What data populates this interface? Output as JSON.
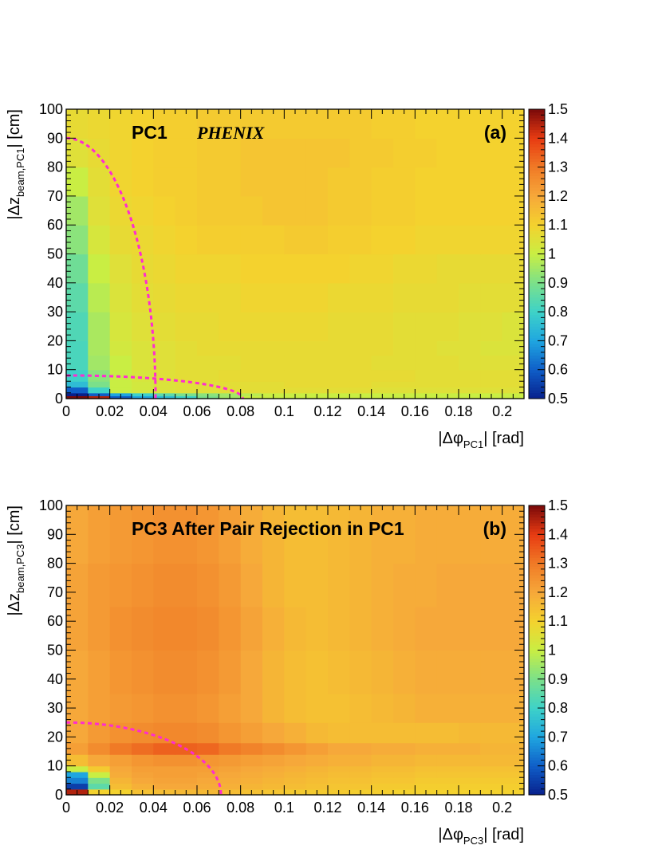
{
  "colors": {
    "palette": [
      "#08208c",
      "#0f5ec8",
      "#1fa6e0",
      "#3ed2c8",
      "#7be08a",
      "#c9ee43",
      "#f4d22e",
      "#f6a83a",
      "#f07a26",
      "#e83b12",
      "#7a0a0a"
    ],
    "contour": "#ff2bd0"
  },
  "chart_data": [
    {
      "type": "heatmap",
      "panel": "a",
      "label": "(a)",
      "title": "PC1",
      "subtitle": "PHENIX",
      "xlabel": {
        "prefix": "|Δφ",
        "sub": "PC1",
        "suffix": "| [rad]"
      },
      "ylabel": {
        "prefix": "|Δz",
        "sub": "beam,PC1",
        "suffix": "| [cm]"
      },
      "xlim": [
        0,
        0.21
      ],
      "ylim": [
        0,
        100
      ],
      "zlim": [
        0.5,
        1.5
      ],
      "x_ticks": [
        "0",
        "0.02",
        "0.04",
        "0.06",
        "0.08",
        "0.1",
        "0.12",
        "0.14",
        "0.16",
        "0.18",
        "0.2"
      ],
      "x_tick_values": [
        0,
        0.02,
        0.04,
        0.06,
        0.08,
        0.1,
        0.12,
        0.14,
        0.16,
        0.18,
        0.2
      ],
      "y_ticks": [
        "0",
        "10",
        "20",
        "30",
        "40",
        "50",
        "60",
        "70",
        "80",
        "90",
        "100"
      ],
      "y_tick_values": [
        0,
        10,
        20,
        30,
        40,
        50,
        60,
        70,
        80,
        90,
        100
      ],
      "z_ticks": [
        "0.5",
        "0.6",
        "0.7",
        "0.8",
        "0.9",
        "1",
        "1.1",
        "1.2",
        "1.3",
        "1.4",
        "1.5"
      ],
      "z_tick_values": [
        0.5,
        0.6,
        0.7,
        0.8,
        0.9,
        1.0,
        1.1,
        1.2,
        1.3,
        1.4,
        1.5
      ],
      "x_bins": [
        0,
        0.01,
        0.02,
        0.03,
        0.04,
        0.05,
        0.06,
        0.07,
        0.08,
        0.09,
        0.1,
        0.11,
        0.12,
        0.13,
        0.14,
        0.15,
        0.16,
        0.17,
        0.18,
        0.19,
        0.2,
        0.21
      ],
      "y_bins": [
        0,
        1,
        2,
        4,
        6,
        10,
        15,
        20,
        30,
        40,
        50,
        60,
        70,
        80,
        90,
        100
      ],
      "z": [
        [
          1.5,
          1.45,
          0.6,
          0.7,
          0.75,
          0.8,
          0.9,
          0.95,
          1.0,
          1.0,
          1.0,
          1.0,
          1.0,
          1.0,
          1.0,
          1.0,
          1.0,
          1.0,
          1.0,
          1.0,
          1.0
        ],
        [
          0.5,
          0.6,
          0.7,
          0.8,
          0.85,
          0.9,
          0.92,
          0.95,
          0.98,
          1.0,
          1.0,
          1.0,
          1.0,
          1.0,
          1.0,
          1.0,
          1.0,
          1.0,
          1.0,
          1.0,
          1.0
        ],
        [
          0.6,
          0.8,
          1.0,
          1.02,
          1.04,
          1.05,
          1.05,
          1.06,
          1.06,
          1.06,
          1.06,
          1.06,
          1.06,
          1.06,
          1.05,
          1.05,
          1.05,
          1.05,
          1.05,
          1.05,
          1.05
        ],
        [
          0.75,
          0.9,
          1.0,
          1.02,
          1.04,
          1.05,
          1.05,
          1.06,
          1.06,
          1.06,
          1.07,
          1.07,
          1.07,
          1.07,
          1.06,
          1.06,
          1.06,
          1.06,
          1.06,
          1.06,
          1.06
        ],
        [
          0.8,
          0.92,
          1.0,
          1.03,
          1.05,
          1.06,
          1.06,
          1.07,
          1.07,
          1.07,
          1.07,
          1.07,
          1.07,
          1.07,
          1.07,
          1.07,
          1.06,
          1.06,
          1.06,
          1.06,
          1.06
        ],
        [
          0.82,
          0.95,
          1.0,
          1.04,
          1.05,
          1.06,
          1.06,
          1.06,
          1.07,
          1.07,
          1.07,
          1.07,
          1.07,
          1.07,
          1.06,
          1.06,
          1.06,
          1.06,
          1.05,
          1.05,
          1.05
        ],
        [
          0.82,
          0.96,
          1.02,
          1.04,
          1.05,
          1.06,
          1.07,
          1.07,
          1.07,
          1.07,
          1.07,
          1.07,
          1.07,
          1.07,
          1.07,
          1.06,
          1.06,
          1.05,
          1.05,
          1.04,
          1.04
        ],
        [
          0.83,
          0.96,
          1.03,
          1.05,
          1.06,
          1.07,
          1.07,
          1.08,
          1.08,
          1.08,
          1.08,
          1.08,
          1.07,
          1.07,
          1.07,
          1.06,
          1.06,
          1.06,
          1.05,
          1.05,
          1.04
        ],
        [
          0.85,
          0.98,
          1.04,
          1.06,
          1.07,
          1.08,
          1.08,
          1.08,
          1.09,
          1.09,
          1.09,
          1.09,
          1.08,
          1.08,
          1.08,
          1.07,
          1.07,
          1.07,
          1.06,
          1.06,
          1.06
        ],
        [
          0.88,
          1.0,
          1.05,
          1.07,
          1.08,
          1.09,
          1.09,
          1.09,
          1.1,
          1.1,
          1.1,
          1.1,
          1.1,
          1.09,
          1.09,
          1.08,
          1.08,
          1.07,
          1.07,
          1.07,
          1.07
        ],
        [
          0.92,
          1.03,
          1.07,
          1.08,
          1.09,
          1.1,
          1.11,
          1.11,
          1.11,
          1.11,
          1.12,
          1.12,
          1.11,
          1.11,
          1.1,
          1.1,
          1.09,
          1.09,
          1.09,
          1.09,
          1.09
        ],
        [
          0.95,
          1.05,
          1.08,
          1.09,
          1.1,
          1.11,
          1.12,
          1.12,
          1.12,
          1.13,
          1.13,
          1.13,
          1.12,
          1.12,
          1.11,
          1.11,
          1.1,
          1.1,
          1.1,
          1.1,
          1.1
        ],
        [
          1.0,
          1.06,
          1.09,
          1.1,
          1.11,
          1.11,
          1.12,
          1.12,
          1.13,
          1.13,
          1.13,
          1.13,
          1.12,
          1.12,
          1.11,
          1.11,
          1.1,
          1.1,
          1.1,
          1.1,
          1.1
        ],
        [
          1.05,
          1.07,
          1.09,
          1.1,
          1.11,
          1.11,
          1.12,
          1.12,
          1.13,
          1.13,
          1.13,
          1.13,
          1.13,
          1.12,
          1.12,
          1.11,
          1.11,
          1.1,
          1.1,
          1.1,
          1.1
        ],
        [
          1.07,
          1.08,
          1.09,
          1.1,
          1.11,
          1.11,
          1.12,
          1.12,
          1.12,
          1.12,
          1.12,
          1.12,
          1.12,
          1.12,
          1.11,
          1.11,
          1.1,
          1.1,
          1.1,
          1.1,
          1.1
        ]
      ],
      "cut_contours": [
        {
          "rx": 0.041,
          "ry": 90
        },
        {
          "rx": 0.081,
          "ry": 8
        }
      ]
    },
    {
      "type": "heatmap",
      "panel": "b",
      "label": "(b)",
      "title": "PC3 After Pair Rejection in PC1",
      "subtitle": "",
      "xlabel": {
        "prefix": "|Δφ",
        "sub": "PC3",
        "suffix": "| [rad]"
      },
      "ylabel": {
        "prefix": "|Δz",
        "sub": "beam,PC3",
        "suffix": "| [cm]"
      },
      "xlim": [
        0,
        0.21
      ],
      "ylim": [
        0,
        100
      ],
      "zlim": [
        0.5,
        1.5
      ],
      "x_ticks": [
        "0",
        "0.02",
        "0.04",
        "0.06",
        "0.08",
        "0.1",
        "0.12",
        "0.14",
        "0.16",
        "0.18",
        "0.2"
      ],
      "x_tick_values": [
        0,
        0.02,
        0.04,
        0.06,
        0.08,
        0.1,
        0.12,
        0.14,
        0.16,
        0.18,
        0.2
      ],
      "y_ticks": [
        "0",
        "10",
        "20",
        "30",
        "40",
        "50",
        "60",
        "70",
        "80",
        "90",
        "100"
      ],
      "y_tick_values": [
        0,
        10,
        20,
        30,
        40,
        50,
        60,
        70,
        80,
        90,
        100
      ],
      "z_ticks": [
        "0.5",
        "0.6",
        "0.7",
        "0.8",
        "0.9",
        "1",
        "1.1",
        "1.2",
        "1.3",
        "1.4",
        "1.5"
      ],
      "z_tick_values": [
        0.5,
        0.6,
        0.7,
        0.8,
        0.9,
        1.0,
        1.1,
        1.2,
        1.3,
        1.4,
        1.5
      ],
      "x_bins": [
        0,
        0.01,
        0.02,
        0.03,
        0.04,
        0.05,
        0.06,
        0.07,
        0.08,
        0.09,
        0.1,
        0.11,
        0.12,
        0.13,
        0.14,
        0.15,
        0.16,
        0.17,
        0.18,
        0.19,
        0.2,
        0.21
      ],
      "y_bins": [
        0,
        2,
        4,
        6,
        8,
        10,
        14,
        18,
        25,
        35,
        50,
        65,
        80,
        100
      ],
      "z": [
        [
          1.45,
          1.1,
          1.1,
          1.14,
          1.15,
          1.16,
          1.16,
          1.15,
          1.14,
          1.13,
          1.12,
          1.12,
          1.12,
          1.11,
          1.11,
          1.1,
          1.1,
          1.1,
          1.1,
          1.1,
          1.1
        ],
        [
          0.55,
          0.85,
          1.15,
          1.18,
          1.2,
          1.2,
          1.19,
          1.18,
          1.17,
          1.16,
          1.15,
          1.14,
          1.13,
          1.13,
          1.12,
          1.12,
          1.11,
          1.11,
          1.11,
          1.11,
          1.11
        ],
        [
          0.65,
          0.9,
          1.17,
          1.2,
          1.21,
          1.21,
          1.2,
          1.19,
          1.18,
          1.17,
          1.16,
          1.15,
          1.14,
          1.14,
          1.13,
          1.13,
          1.12,
          1.12,
          1.12,
          1.12,
          1.12
        ],
        [
          0.7,
          1.0,
          1.19,
          1.21,
          1.22,
          1.22,
          1.21,
          1.2,
          1.19,
          1.18,
          1.17,
          1.16,
          1.15,
          1.15,
          1.14,
          1.14,
          1.13,
          1.13,
          1.13,
          1.13,
          1.13
        ],
        [
          1.0,
          1.12,
          1.2,
          1.22,
          1.22,
          1.22,
          1.22,
          1.21,
          1.2,
          1.19,
          1.18,
          1.17,
          1.16,
          1.16,
          1.15,
          1.15,
          1.14,
          1.14,
          1.14,
          1.14,
          1.14
        ],
        [
          1.15,
          1.2,
          1.22,
          1.24,
          1.25,
          1.25,
          1.24,
          1.23,
          1.22,
          1.21,
          1.2,
          1.19,
          1.18,
          1.18,
          1.17,
          1.17,
          1.16,
          1.16,
          1.16,
          1.16,
          1.16
        ],
        [
          1.22,
          1.26,
          1.3,
          1.32,
          1.34,
          1.34,
          1.33,
          1.3,
          1.28,
          1.26,
          1.24,
          1.22,
          1.2,
          1.2,
          1.19,
          1.19,
          1.18,
          1.18,
          1.18,
          1.17,
          1.17
        ],
        [
          1.2,
          1.23,
          1.25,
          1.26,
          1.27,
          1.27,
          1.26,
          1.24,
          1.22,
          1.2,
          1.18,
          1.16,
          1.15,
          1.15,
          1.15,
          1.15,
          1.15,
          1.15,
          1.16,
          1.16,
          1.16
        ],
        [
          1.2,
          1.22,
          1.23,
          1.24,
          1.25,
          1.25,
          1.24,
          1.22,
          1.2,
          1.17,
          1.15,
          1.14,
          1.14,
          1.15,
          1.16,
          1.17,
          1.18,
          1.18,
          1.18,
          1.18,
          1.18
        ],
        [
          1.2,
          1.22,
          1.24,
          1.25,
          1.26,
          1.26,
          1.25,
          1.23,
          1.2,
          1.17,
          1.15,
          1.14,
          1.15,
          1.16,
          1.17,
          1.18,
          1.19,
          1.19,
          1.19,
          1.19,
          1.19
        ],
        [
          1.21,
          1.23,
          1.25,
          1.26,
          1.27,
          1.27,
          1.26,
          1.24,
          1.21,
          1.18,
          1.16,
          1.15,
          1.16,
          1.17,
          1.18,
          1.19,
          1.2,
          1.2,
          1.2,
          1.2,
          1.2
        ],
        [
          1.21,
          1.23,
          1.24,
          1.25,
          1.26,
          1.26,
          1.25,
          1.23,
          1.2,
          1.17,
          1.15,
          1.15,
          1.16,
          1.17,
          1.18,
          1.19,
          1.19,
          1.2,
          1.2,
          1.2,
          1.2
        ],
        [
          1.2,
          1.22,
          1.23,
          1.24,
          1.25,
          1.25,
          1.24,
          1.22,
          1.19,
          1.17,
          1.15,
          1.15,
          1.16,
          1.17,
          1.18,
          1.18,
          1.19,
          1.19,
          1.19,
          1.19,
          1.19
        ]
      ],
      "cut_contours": [
        {
          "rx": 0.071,
          "ry": 25
        }
      ]
    }
  ]
}
